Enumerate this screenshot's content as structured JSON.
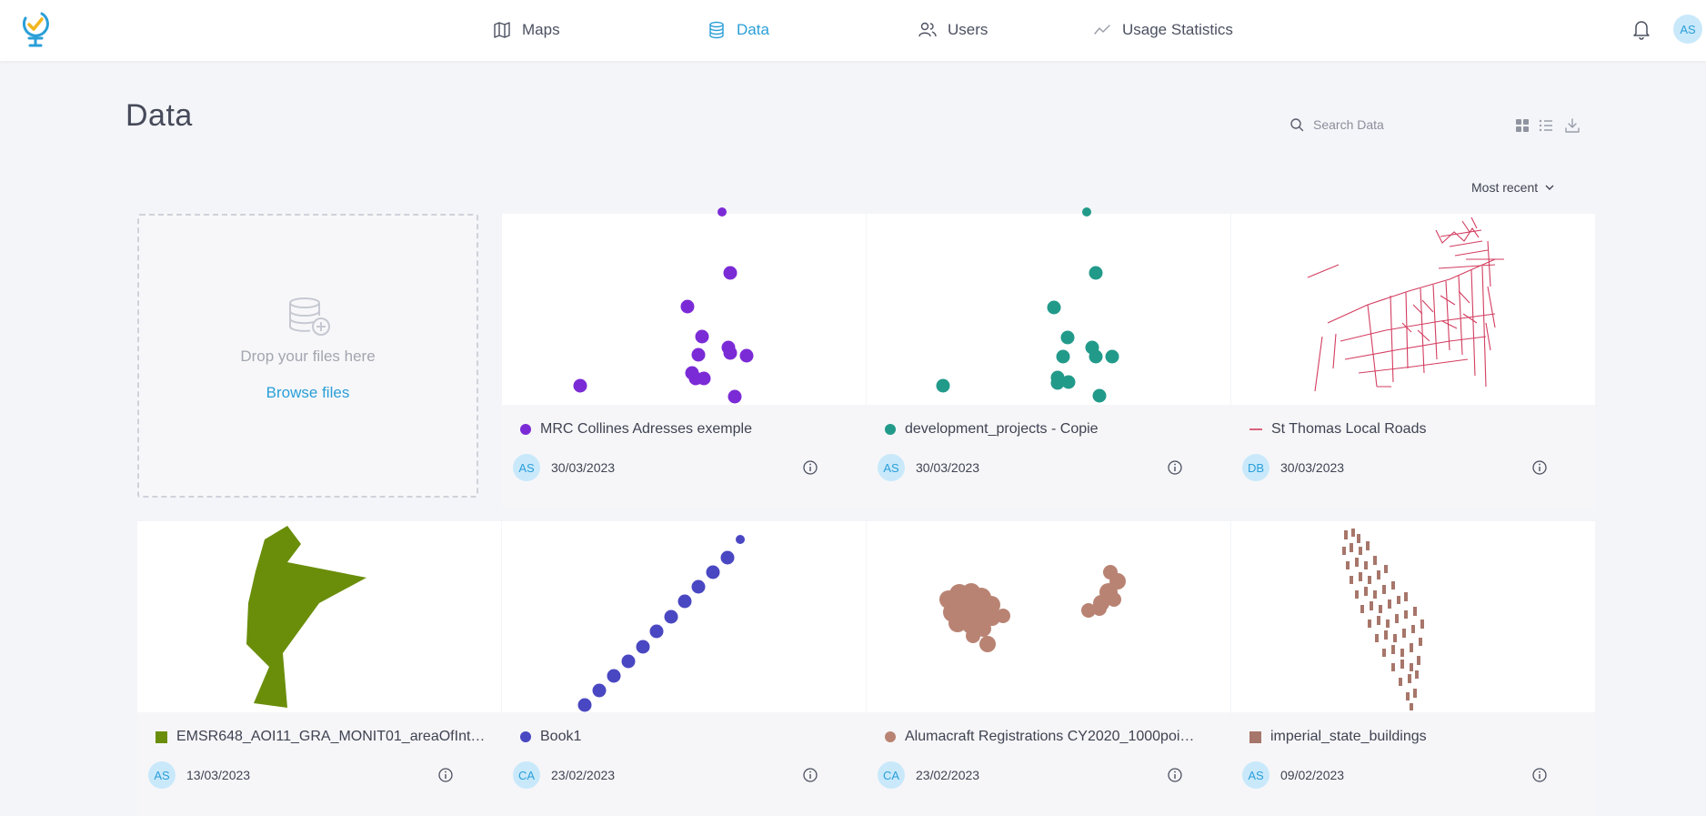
{
  "header": {
    "nav": [
      {
        "label": "Maps",
        "icon": "map-icon"
      },
      {
        "label": "Data",
        "icon": "database-icon",
        "active": true
      },
      {
        "label": "Users",
        "icon": "users-icon"
      },
      {
        "label": "Usage Statistics",
        "icon": "chart-line-icon"
      }
    ],
    "user_initials": "AS"
  },
  "page": {
    "title": "Data",
    "search_placeholder": "Search Data",
    "sort_label": "Most recent"
  },
  "dropzone": {
    "text": "Drop your files here",
    "browse": "Browse files"
  },
  "colors": {
    "accent": "#2a9fd8",
    "purple": "#7b2bd6",
    "teal": "#229a8a",
    "road": "#d33d60",
    "olive": "#6a8e0a",
    "indigo": "#4a47c2",
    "clay": "#b98373",
    "brick": "#a7766a"
  },
  "datasets": [
    {
      "name": "MRC Collines Adresses exemple",
      "owner": "AS",
      "date": "30/03/2023",
      "marker": "dot",
      "color": "#7b2bd6"
    },
    {
      "name": "development_projects - Copie",
      "owner": "AS",
      "date": "30/03/2023",
      "marker": "dot",
      "color": "#229a8a"
    },
    {
      "name": "St Thomas Local Roads",
      "owner": "DB",
      "date": "30/03/2023",
      "marker": "line",
      "color": "#d33d60"
    },
    {
      "name": "EMSR648_AOI11_GRA_MONIT01_areaOfInt…",
      "owner": "AS",
      "date": "13/03/2023",
      "marker": "square",
      "color": "#6a8e0a"
    },
    {
      "name": "Book1",
      "owner": "CA",
      "date": "23/02/2023",
      "marker": "dot",
      "color": "#4a47c2"
    },
    {
      "name": "Alumacraft Registrations CY2020_1000poi…",
      "owner": "CA",
      "date": "23/02/2023",
      "marker": "dot",
      "color": "#b98373"
    },
    {
      "name": "imperial_state_buildings",
      "owner": "AS",
      "date": "09/02/2023",
      "marker": "square",
      "color": "#a7766a"
    }
  ]
}
